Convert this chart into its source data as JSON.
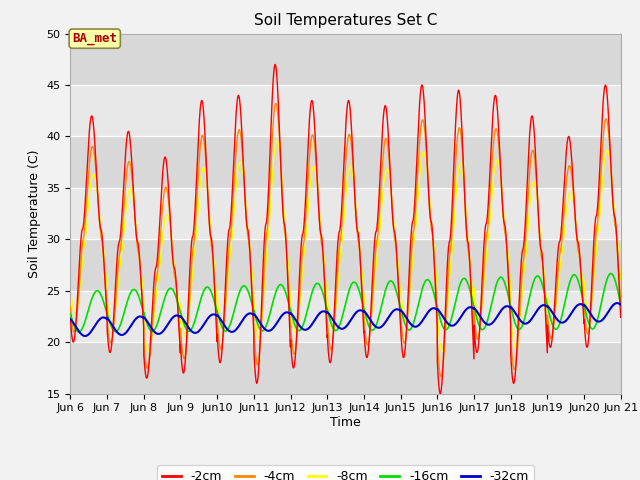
{
  "title": "Soil Temperatures Set C",
  "xlabel": "Time",
  "ylabel": "Soil Temperature (C)",
  "ylim": [
    15,
    50
  ],
  "annotation": "BA_met",
  "bg_color": "#f2f2f2",
  "plot_bg_color": "#e8e8e8",
  "grid_color": "#ffffff",
  "legend_entries": [
    "-2cm",
    "-4cm",
    "-8cm",
    "-16cm",
    "-32cm"
  ],
  "series_colors": [
    "#ff0000",
    "#ff8800",
    "#ffff00",
    "#00dd00",
    "#0000cc"
  ],
  "x_ticks": [
    6,
    7,
    8,
    9,
    10,
    11,
    12,
    13,
    14,
    15,
    16,
    17,
    18,
    19,
    20,
    21
  ],
  "x_tick_labels": [
    "Jun 6",
    "Jun 7",
    "Jun 8",
    "Jun 9",
    "Jun10",
    "Jun11",
    "Jun12",
    "Jun13",
    "Jun14",
    "Jun15",
    "Jun16",
    "Jun17",
    "Jun18",
    "Jun19",
    "Jun20",
    "Jun 21"
  ],
  "y_ticks": [
    15,
    20,
    25,
    30,
    35,
    40,
    45,
    50
  ],
  "peaks_2cm": [
    42.0,
    40.5,
    38.0,
    43.5,
    44.0,
    47.0,
    43.5,
    43.5,
    43.0,
    45.0,
    44.5,
    44.0,
    42.0,
    40.0,
    45.0
  ],
  "troughs_2cm": [
    20.0,
    19.0,
    16.5,
    17.0,
    18.0,
    16.0,
    17.5,
    18.0,
    18.5,
    18.5,
    15.0,
    19.0,
    16.0,
    19.5,
    19.5
  ],
  "pts_per_day": 288
}
